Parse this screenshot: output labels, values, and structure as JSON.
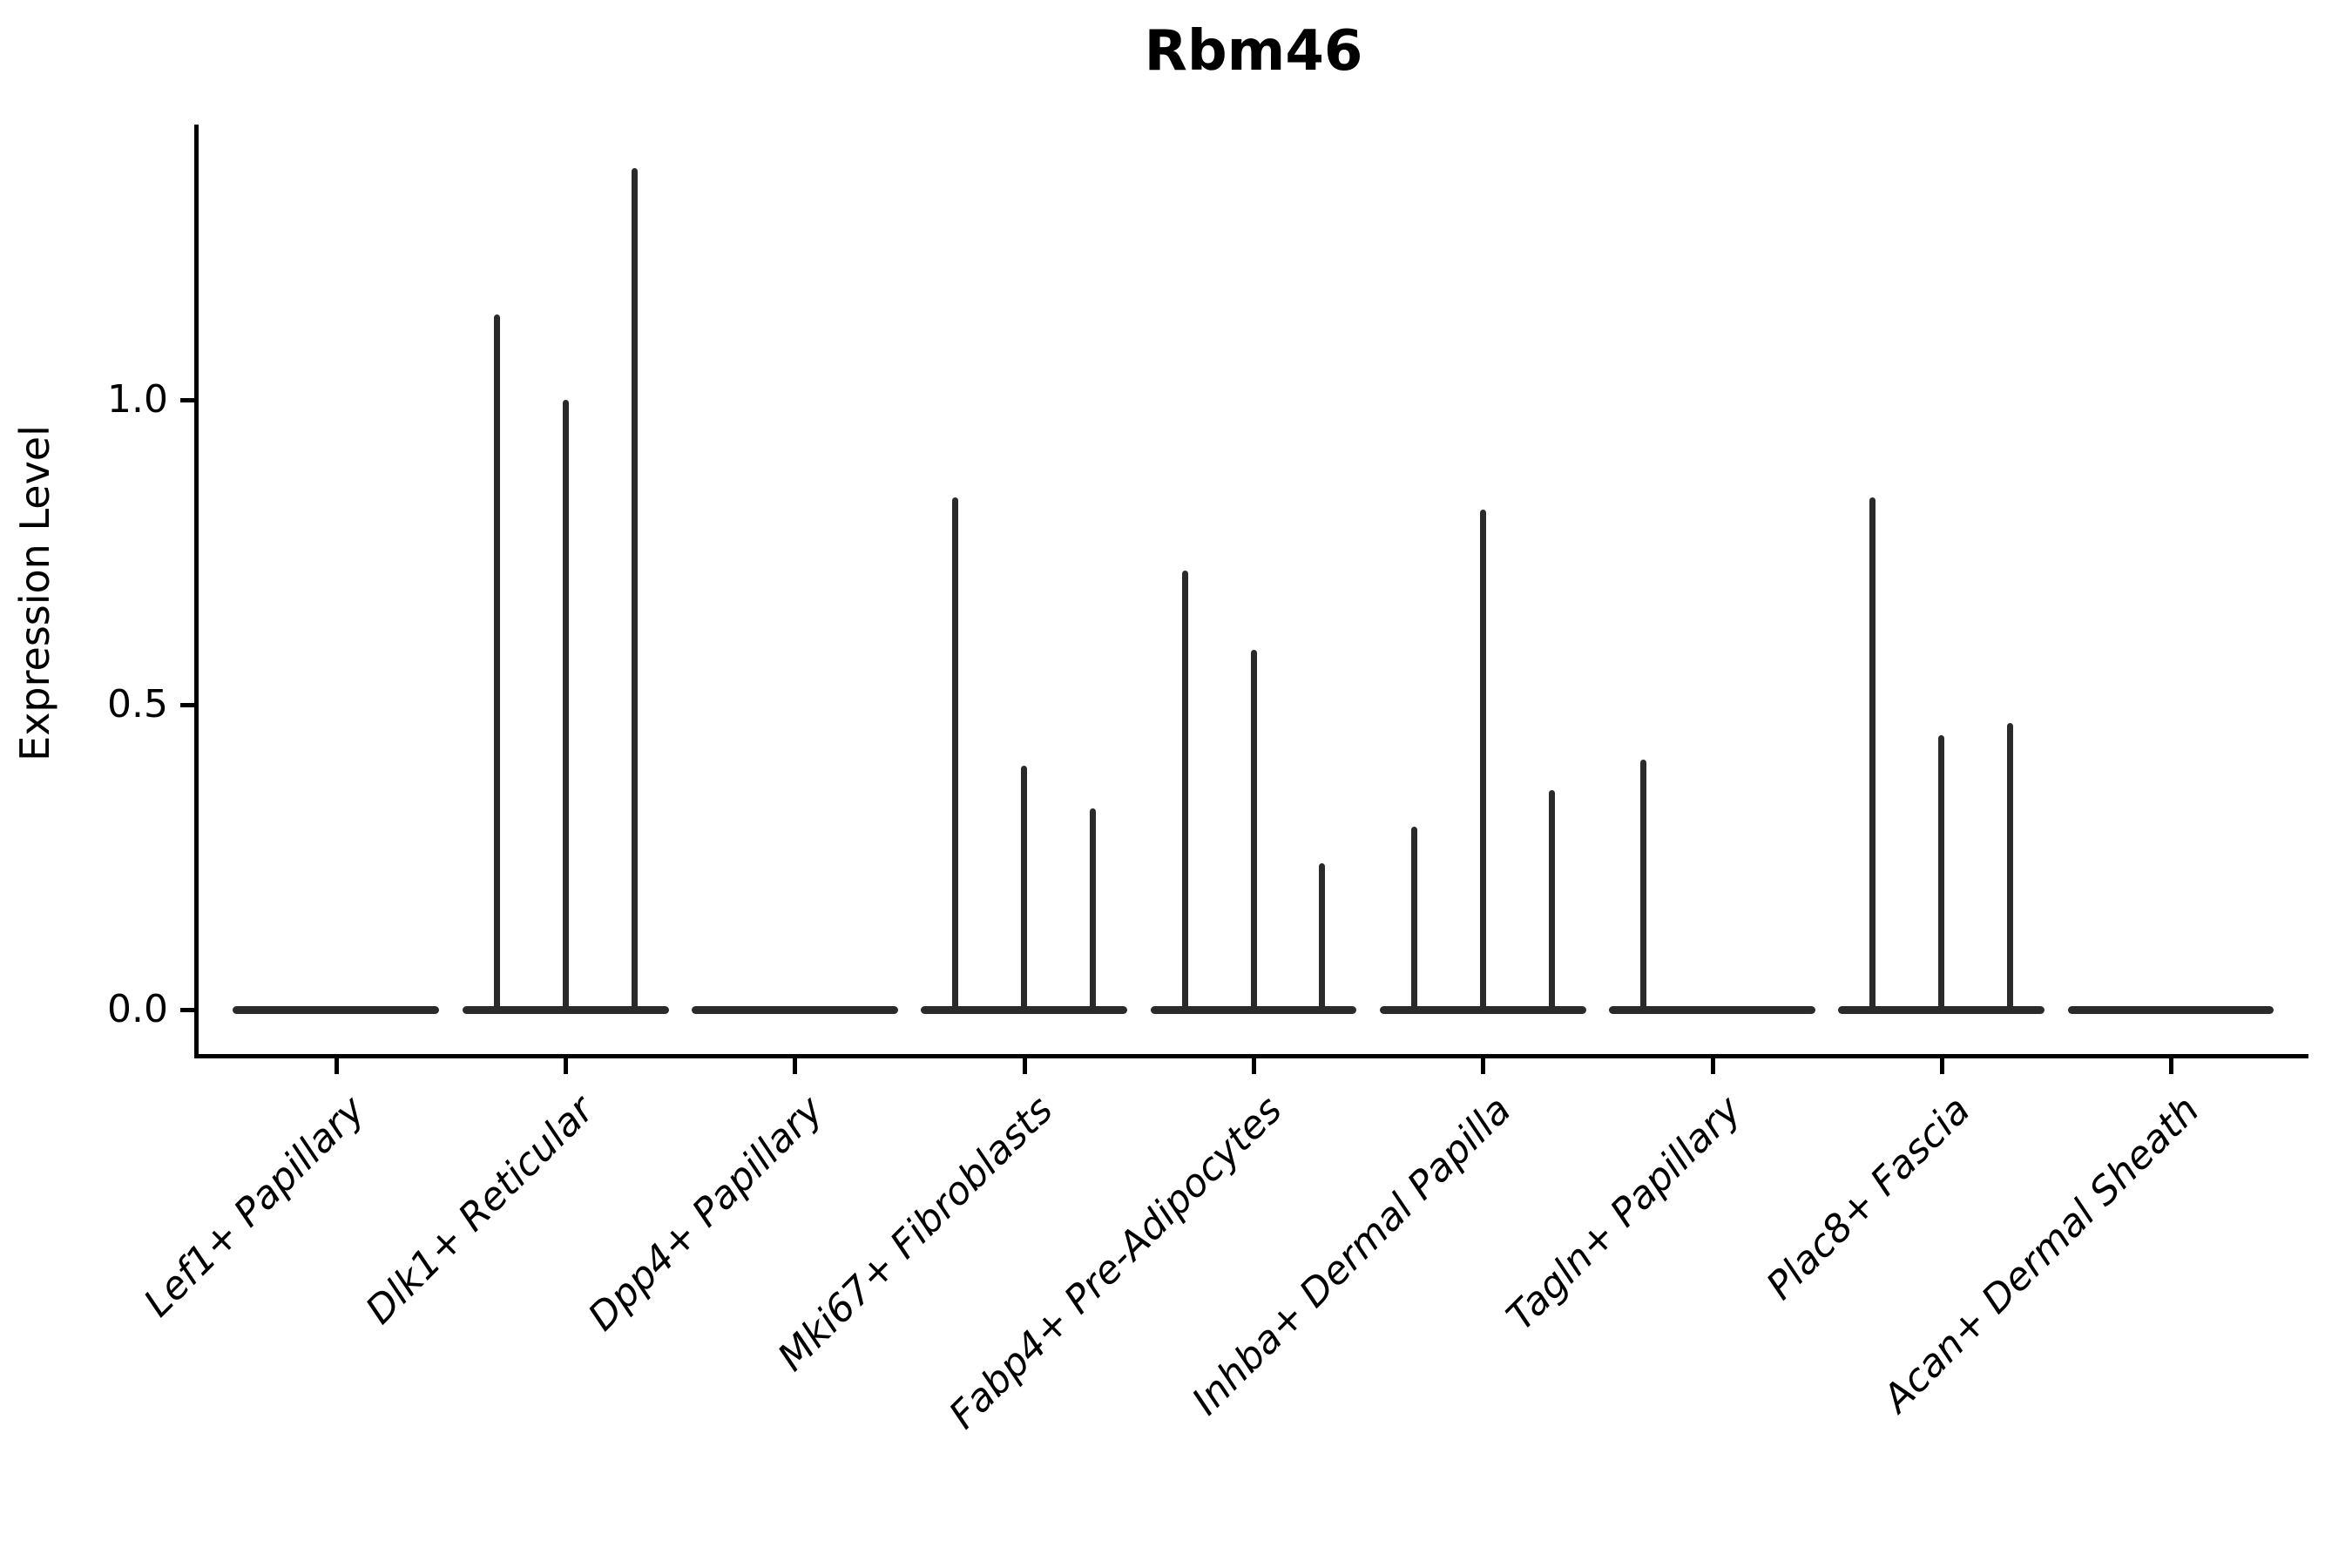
{
  "title": "Rbm46",
  "ylabel": "Expression Level",
  "chart_data": {
    "type": "violin",
    "title": "Rbm46",
    "xlabel": "",
    "ylabel": "Expression Level",
    "legend": "none",
    "grid": "off",
    "categories": [
      "Lef1+ Papillary",
      "Dlk1+ Reticular",
      "Dpp4+ Papillary",
      "Mki67+ Fibroblasts",
      "Fabp4+ Pre-Adipocytes",
      "Inhba+ Dermal Papilla",
      "Tagln+ Papillary",
      "Plac8+ Fascia",
      "Acan+ Dermal Sheath"
    ],
    "y_ticks": [
      0.0,
      0.5,
      1.0
    ],
    "y_tick_labels": [
      "0.0",
      "0.5",
      "1.0"
    ],
    "ylim": [
      0,
      1.45
    ],
    "description": "Collapsed violins lying on 0 with three thin density spikes per category; spike height = maximum expression level reached in that split group.",
    "series": [
      {
        "name": "split-violin-left",
        "max_values": [
          0,
          1.14,
          0,
          0.84,
          0.72,
          0.3,
          0.41,
          0.84,
          0
        ]
      },
      {
        "name": "split-violin-center",
        "max_values": [
          0,
          1.0,
          0,
          0.4,
          0.59,
          0.82,
          0,
          0.45,
          0
        ]
      },
      {
        "name": "split-violin-right",
        "max_values": [
          0,
          1.38,
          0,
          0.33,
          0.24,
          0.36,
          0,
          0.47,
          0
        ]
      }
    ],
    "baseline_value": 0,
    "colors": {
      "ink": "#2a2a2a",
      "axis": "#000000",
      "background": "#ffffff"
    }
  }
}
